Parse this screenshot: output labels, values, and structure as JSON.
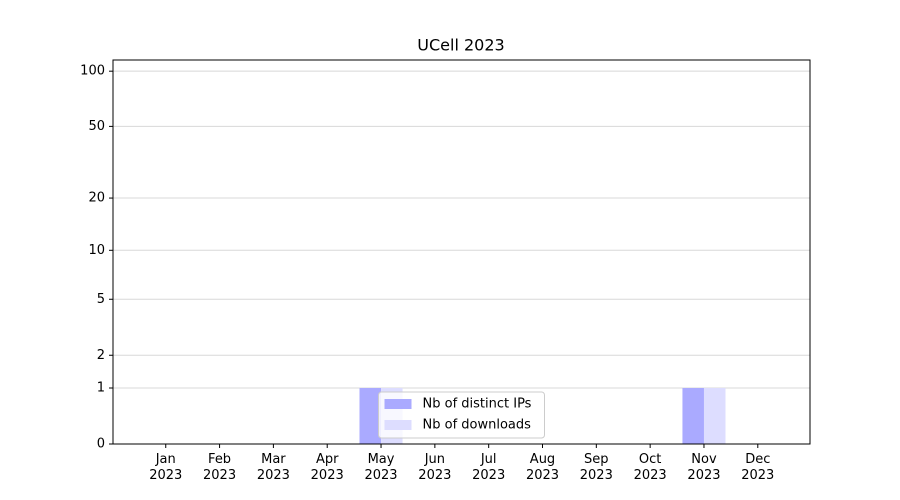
{
  "chart_data": {
    "type": "bar",
    "title": "UCell 2023",
    "categories": [
      "Jan 2023",
      "Feb 2023",
      "Mar 2023",
      "Apr 2023",
      "May 2023",
      "Jun 2023",
      "Jul 2023",
      "Aug 2023",
      "Sep 2023",
      "Oct 2023",
      "Nov 2023",
      "Dec 2023"
    ],
    "series": [
      {
        "name": "Nb of distinct IPs",
        "color": "#aaaaff",
        "values": [
          0,
          0,
          0,
          0,
          1,
          0,
          0,
          0,
          0,
          0,
          1,
          0
        ]
      },
      {
        "name": "Nb of downloads",
        "color": "#ddddff",
        "values": [
          0,
          0,
          0,
          0,
          1,
          0,
          0,
          0,
          0,
          0,
          1,
          0
        ]
      }
    ],
    "yscale": "log1p",
    "ylim": [
      0,
      115
    ],
    "yticks": [
      0,
      1,
      2,
      5,
      10,
      20,
      50,
      100
    ],
    "grid": true,
    "legend": "lower center"
  }
}
